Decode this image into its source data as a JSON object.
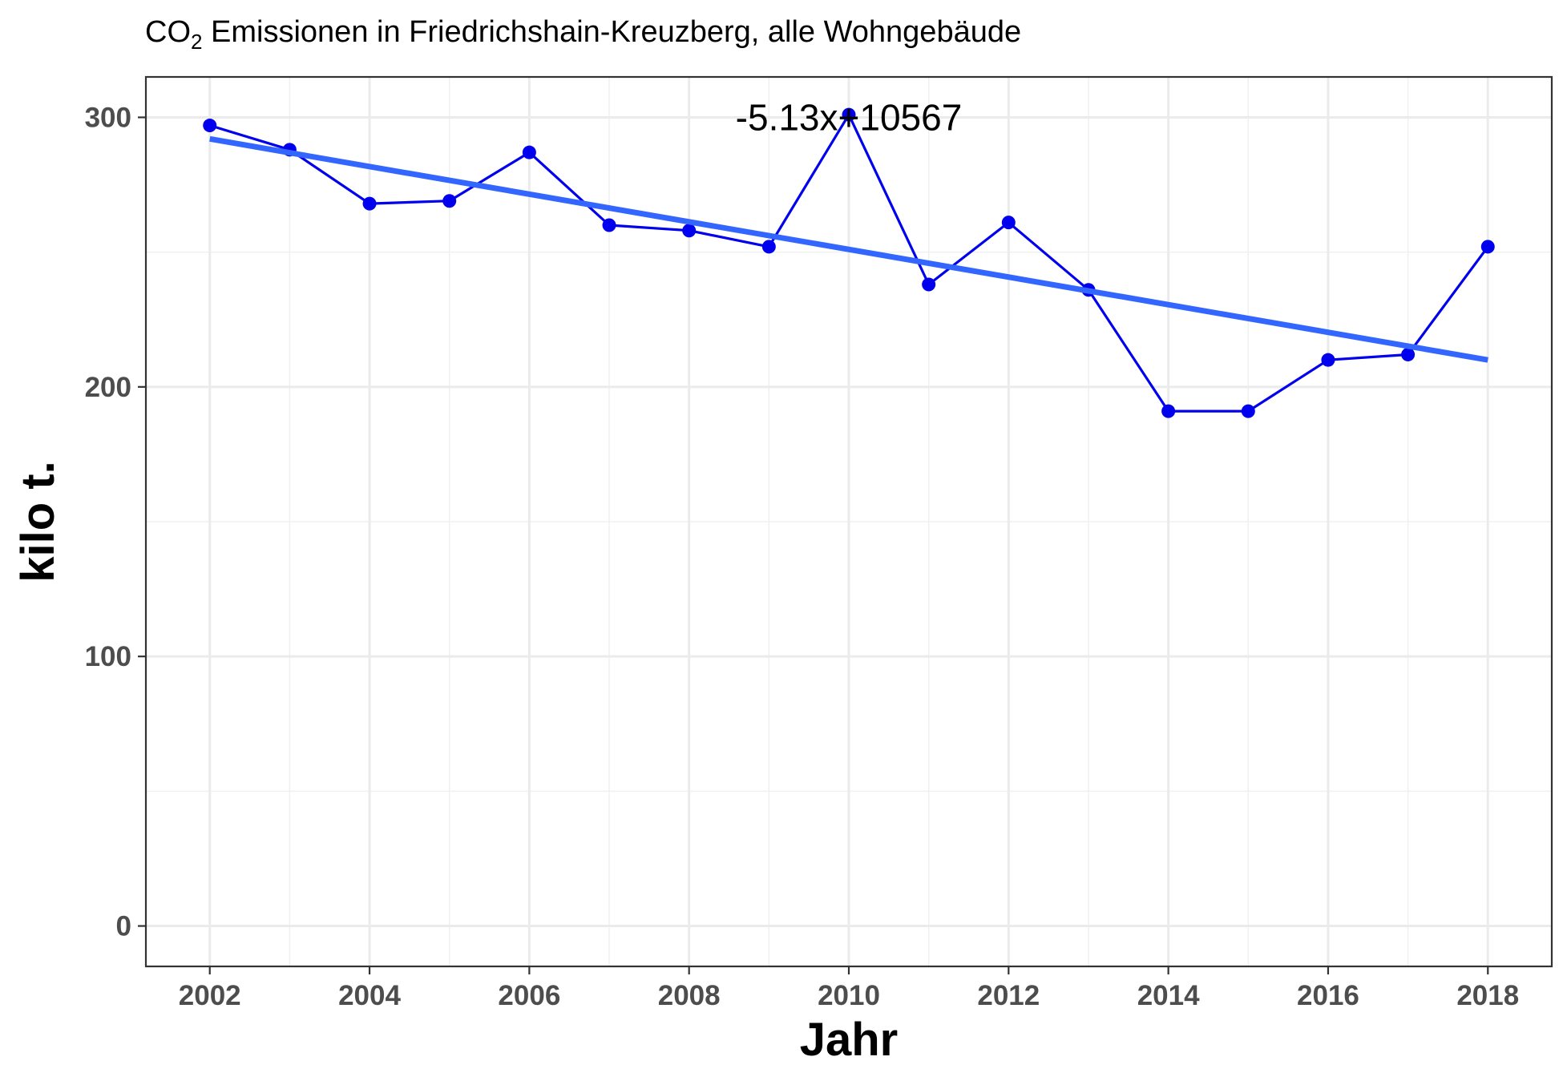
{
  "chart_data": {
    "type": "line",
    "title": {
      "prefix": "CO",
      "subscript": "2",
      "suffix": " Emissionen in Friedrichshain-Kreuzberg, alle Wohngebäude"
    },
    "xlabel": "Jahr",
    "ylabel": "kilo t.",
    "xlim": [
      2001.2,
      2018.8
    ],
    "ylim": [
      -15,
      315
    ],
    "x_ticks": [
      2002,
      2004,
      2006,
      2008,
      2010,
      2012,
      2014,
      2016,
      2018
    ],
    "x_tick_labels": [
      "2002",
      "2004",
      "2006",
      "2008",
      "2010",
      "2012",
      "2014",
      "2016",
      "2018"
    ],
    "y_ticks": [
      0,
      100,
      200,
      300
    ],
    "y_tick_labels": [
      "0",
      "100",
      "200",
      "300"
    ],
    "grid": true,
    "series": [
      {
        "x": [
          2002,
          2003,
          2004,
          2005,
          2006,
          2007,
          2008,
          2009,
          2010,
          2011,
          2012,
          2013,
          2014,
          2015,
          2016,
          2017,
          2018
        ],
        "values": [
          297,
          288,
          268,
          269,
          287,
          260,
          258,
          252,
          301,
          238,
          261,
          236,
          191,
          191,
          210,
          212,
          252
        ],
        "color": "#0000ee"
      }
    ],
    "trendline": {
      "slope": -5.13,
      "intercept": 10567,
      "x_range": [
        2002,
        2018
      ],
      "y_start": 292,
      "y_end": 210,
      "color": "#3366ff"
    },
    "annotation": {
      "text": "-5.13x+10567",
      "x": 2010,
      "y": 300
    }
  }
}
